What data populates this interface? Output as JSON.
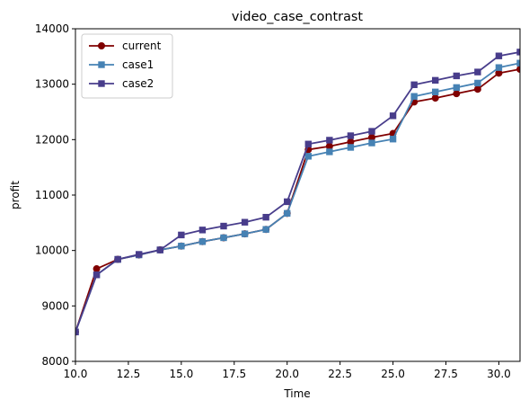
{
  "chart_data": {
    "type": "line",
    "title": "video_case_contrast",
    "xlabel": "Time",
    "ylabel": "profit",
    "xlim": [
      10.0,
      31.0
    ],
    "ylim": [
      8000,
      14000
    ],
    "xticks": [
      10.0,
      12.5,
      15.0,
      17.5,
      20.0,
      22.5,
      25.0,
      27.5,
      30.0
    ],
    "xtick_labels": [
      "10.0",
      "12.5",
      "15.0",
      "17.5",
      "20.0",
      "22.5",
      "25.0",
      "27.5",
      "30.0"
    ],
    "yticks": [
      8000,
      9000,
      10000,
      11000,
      12000,
      13000,
      14000
    ],
    "ytick_labels": [
      "8000",
      "9000",
      "10000",
      "11000",
      "12000",
      "13000",
      "14000"
    ],
    "grid": false,
    "legend_position": "top-left",
    "x": [
      10,
      11,
      12,
      13,
      14,
      15,
      16,
      17,
      18,
      19,
      20,
      21,
      22,
      23,
      24,
      25,
      26,
      27,
      28,
      29,
      30,
      31
    ],
    "series": [
      {
        "name": "current",
        "color": "#800000",
        "marker": "circle",
        "values": [
          8530,
          9670,
          9840,
          9920,
          10010,
          10080,
          10160,
          10230,
          10300,
          10380,
          10670,
          11820,
          11880,
          11960,
          12040,
          12110,
          12680,
          12750,
          12830,
          12910,
          13200,
          13270
        ]
      },
      {
        "name": "case1",
        "color": "#4682b4",
        "marker": "square",
        "values": [
          8530,
          9560,
          9840,
          9920,
          10010,
          10080,
          10160,
          10230,
          10300,
          10380,
          10670,
          11700,
          11780,
          11860,
          11940,
          12010,
          12780,
          12860,
          12940,
          13020,
          13300,
          13380
        ]
      },
      {
        "name": "case2",
        "color": "#483d8b",
        "marker": "square",
        "values": [
          8530,
          9560,
          9840,
          9930,
          10010,
          10280,
          10370,
          10440,
          10510,
          10600,
          10880,
          11920,
          11990,
          12070,
          12150,
          12430,
          12990,
          13070,
          13150,
          13220,
          13510,
          13580
        ]
      }
    ]
  }
}
